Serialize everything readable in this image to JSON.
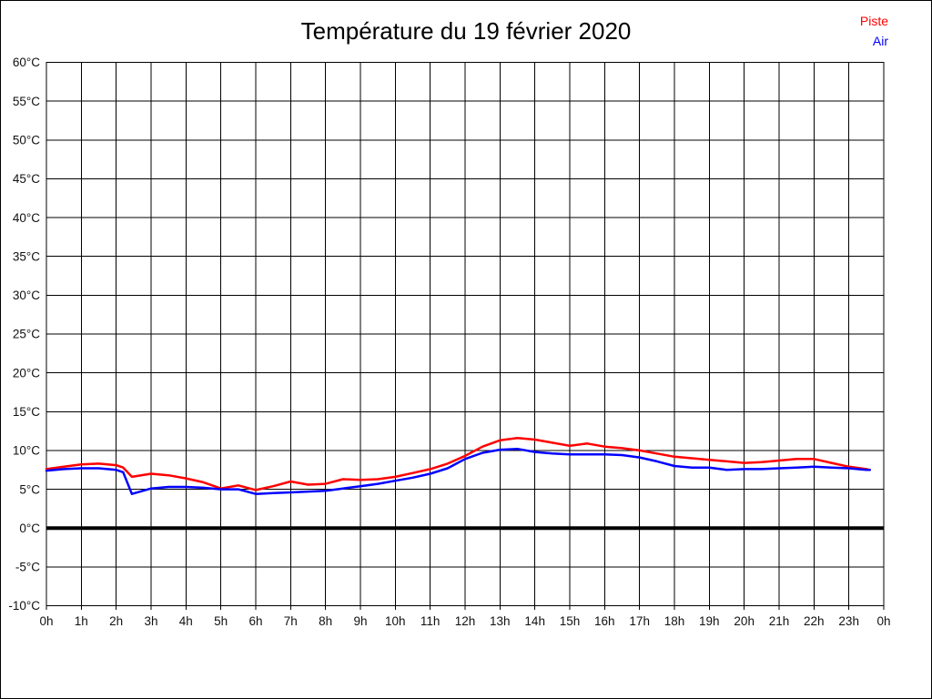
{
  "header": {
    "title": "Température du 19 février 2020"
  },
  "chart_data": {
    "type": "line",
    "title": "Température du 19 février 2020",
    "xlabel": "",
    "ylabel": "",
    "xlim": [
      0,
      24
    ],
    "ylim": [
      -10,
      60
    ],
    "ystep": 5,
    "grid": true,
    "legend_position": "top-right",
    "zero_line_value": 0,
    "x_tick_labels": [
      "0h",
      "1h",
      "2h",
      "3h",
      "4h",
      "5h",
      "6h",
      "7h",
      "8h",
      "9h",
      "10h",
      "11h",
      "12h",
      "13h",
      "14h",
      "15h",
      "16h",
      "17h",
      "18h",
      "19h",
      "20h",
      "21h",
      "22h",
      "23h",
      "0h"
    ],
    "y_tick_values": [
      60,
      55,
      50,
      45,
      40,
      35,
      30,
      25,
      20,
      15,
      10,
      5,
      0,
      -5,
      -10
    ],
    "y_tick_labels": [
      "60°C",
      "55°C",
      "50°C",
      "45°C",
      "40°C",
      "35°C",
      "30°C",
      "25°C",
      "20°C",
      "15°C",
      "10°C",
      "5°C",
      "0°C",
      "-5°C",
      "-10°C"
    ],
    "x": [
      0,
      0.5,
      1,
      1.5,
      2,
      2.2,
      2.45,
      3,
      3.5,
      4,
      4.5,
      5,
      5.5,
      6,
      6.5,
      7,
      7.5,
      8,
      8.5,
      9,
      9.5,
      10,
      10.5,
      11,
      11.5,
      12,
      12.5,
      13,
      13.5,
      14,
      14.5,
      15,
      15.5,
      16,
      16.5,
      17,
      17.5,
      18,
      18.5,
      19,
      19.5,
      20,
      20.5,
      21,
      21.5,
      22,
      22.5,
      23,
      23.5,
      23.6
    ],
    "series": [
      {
        "name": "Piste",
        "color": "#ff0000",
        "values": [
          7.6,
          7.9,
          8.2,
          8.3,
          8.1,
          7.8,
          6.6,
          7.0,
          6.8,
          6.4,
          5.9,
          5.1,
          5.5,
          4.9,
          5.4,
          6.0,
          5.6,
          5.7,
          6.3,
          6.2,
          6.3,
          6.6,
          7.1,
          7.6,
          8.3,
          9.3,
          10.5,
          11.3,
          11.6,
          11.4,
          11.0,
          10.6,
          10.9,
          10.5,
          10.3,
          10.0,
          9.6,
          9.2,
          9.0,
          8.8,
          8.6,
          8.4,
          8.5,
          8.7,
          8.9,
          8.9,
          8.4,
          7.9,
          7.6,
          7.5
        ]
      },
      {
        "name": "Air",
        "color": "#0000ff",
        "values": [
          7.4,
          7.6,
          7.7,
          7.7,
          7.5,
          7.2,
          4.4,
          5.1,
          5.3,
          5.3,
          5.2,
          5.0,
          5.0,
          4.4,
          4.5,
          4.6,
          4.7,
          4.8,
          5.1,
          5.4,
          5.7,
          6.1,
          6.5,
          7.0,
          7.7,
          8.9,
          9.7,
          10.1,
          10.2,
          9.8,
          9.6,
          9.5,
          9.5,
          9.5,
          9.4,
          9.1,
          8.6,
          8.0,
          7.8,
          7.8,
          7.5,
          7.6,
          7.6,
          7.7,
          7.8,
          7.9,
          7.8,
          7.7,
          7.5,
          7.5
        ]
      }
    ]
  }
}
